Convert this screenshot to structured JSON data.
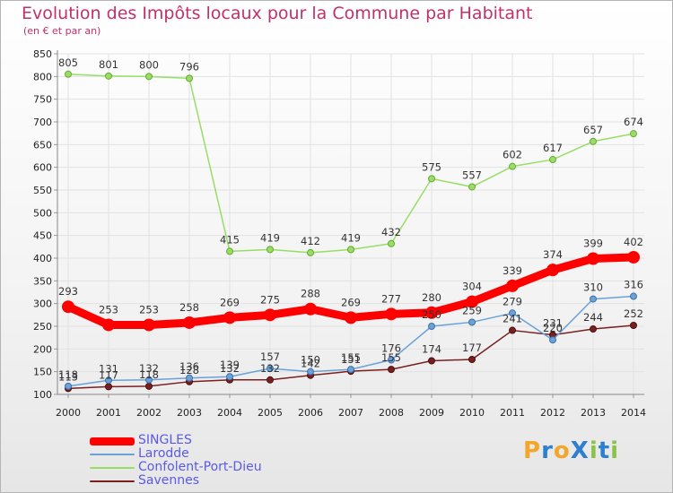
{
  "title": "Evolution des Impôts locaux pour la Commune par Habitant",
  "subtitle": "(en € et par an)",
  "logo": {
    "text": "Proxiti",
    "letters": [
      {
        "ch": "P",
        "color": "#f2a62b"
      },
      {
        "ch": "r",
        "color": "#2f7fd0"
      },
      {
        "ch": "o",
        "color": "#f2a62b"
      },
      {
        "ch": "X",
        "color": "#2f7fd0"
      },
      {
        "ch": "i",
        "color": "#8bc34a"
      },
      {
        "ch": "t",
        "color": "#2f7fd0"
      },
      {
        "ch": "i",
        "color": "#8bc34a"
      }
    ]
  },
  "chart_data": {
    "type": "line",
    "title": "Evolution des Impôts locaux pour la Commune par Habitant",
    "subtitle": "(en € et par an)",
    "x": [
      2000,
      2001,
      2002,
      2003,
      2004,
      2005,
      2006,
      2007,
      2008,
      2009,
      2010,
      2011,
      2012,
      2013,
      2014
    ],
    "ylim": [
      100,
      850
    ],
    "yticks": [
      100,
      150,
      200,
      250,
      300,
      350,
      400,
      450,
      500,
      550,
      600,
      650,
      700,
      750,
      800,
      850
    ],
    "grid": true,
    "legend": "bottom-left",
    "series": [
      {
        "name": "SINGLES",
        "color": "#ff0000",
        "values": [
          293,
          253,
          253,
          258,
          269,
          275,
          288,
          269,
          277,
          280,
          304,
          339,
          374,
          399,
          402
        ]
      },
      {
        "name": "Larodde",
        "color": "#6aa2d8",
        "values": [
          118,
          131,
          132,
          136,
          139,
          157,
          150,
          155,
          176,
          250,
          259,
          279,
          220,
          310,
          316
        ]
      },
      {
        "name": "Confolent-Port-Dieu",
        "color": "#99dd66",
        "values": [
          805,
          801,
          800,
          796,
          415,
          419,
          412,
          419,
          432,
          575,
          557,
          602,
          617,
          657,
          674
        ]
      },
      {
        "name": "Savennes",
        "color": "#7a1f1f",
        "values": [
          113,
          117,
          118,
          128,
          132,
          132,
          142,
          151,
          155,
          174,
          177,
          241,
          231,
          244,
          252
        ]
      }
    ]
  }
}
